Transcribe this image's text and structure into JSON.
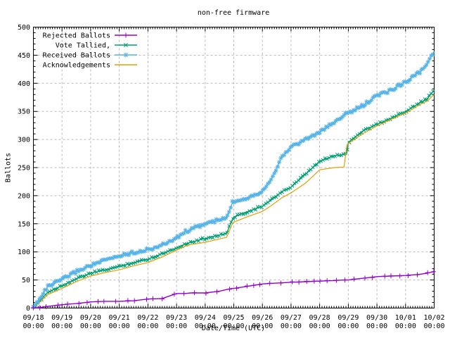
{
  "chart_data": {
    "type": "line",
    "title": "non-free firmware",
    "xlabel": "Date/Time (UTC)",
    "ylabel": "Ballots",
    "background": "#ffffff",
    "grid": true,
    "grid_color": "#b9b9b9",
    "axis_color": "#000000",
    "legend_position": "top-left-inside",
    "x_axis": {
      "tick_dates": [
        "09/18",
        "09/19",
        "09/20",
        "09/21",
        "09/22",
        "09/23",
        "09/24",
        "09/25",
        "09/26",
        "09/27",
        "09/28",
        "09/29",
        "09/30",
        "10/01",
        "10/02"
      ],
      "tick_time": "00:00",
      "range_days": [
        0,
        14
      ],
      "minor_ticks_per_day": 12
    },
    "y_axis": {
      "min": 0,
      "max": 500,
      "tick_step": 50,
      "minor_step": 10
    },
    "x_days": [
      0,
      0.25,
      0.5,
      1,
      1.5,
      2,
      2.5,
      3,
      3.5,
      4,
      4.5,
      5,
      5.3,
      5.5,
      6,
      6.5,
      6.75,
      6.95,
      7,
      7.5,
      8,
      8.3,
      8.7,
      9,
      9.5,
      10,
      10.5,
      10.85,
      10.95,
      11,
      11.5,
      12,
      12.5,
      13,
      13.5,
      13.75,
      14
    ],
    "series": [
      {
        "name": "Rejected Ballots",
        "color": "#9400D3",
        "marker": "plus",
        "values": [
          0,
          1,
          3,
          6,
          8,
          11,
          12,
          12,
          13,
          16,
          17,
          26,
          26,
          27,
          27,
          30,
          33,
          35,
          35,
          39,
          43,
          44,
          45,
          46,
          47,
          48,
          49,
          50,
          50,
          50,
          53,
          56,
          57,
          58,
          60,
          62,
          65
        ]
      },
      {
        "name": "Vote Tallied,",
        "color": "#009E73",
        "marker": "cross",
        "values": [
          0,
          15,
          28,
          40,
          52,
          62,
          68,
          74,
          81,
          87,
          97,
          107,
          114,
          117,
          124,
          130,
          133,
          158,
          162,
          172,
          181,
          192,
          208,
          215,
          238,
          261,
          271,
          273,
          276,
          295,
          315,
          327,
          338,
          350,
          365,
          372,
          388
        ]
      },
      {
        "name": "Received Ballots",
        "color": "#56B4E9",
        "marker": "asterisk",
        "values": [
          0,
          20,
          38,
          51,
          65,
          76,
          85,
          93,
          99,
          104,
          112,
          125,
          136,
          140,
          150,
          157,
          160,
          188,
          190,
          197,
          208,
          230,
          270,
          287,
          300,
          313,
          330,
          344,
          346,
          347,
          360,
          378,
          388,
          403,
          420,
          433,
          457
        ]
      },
      {
        "name": "Acknowledgements",
        "color": "#E69F00",
        "marker": "none",
        "values": [
          0,
          12,
          24,
          35,
          47,
          57,
          63,
          68,
          75,
          81,
          91,
          103,
          110,
          113,
          117,
          123,
          126,
          150,
          153,
          163,
          172,
          182,
          197,
          205,
          222,
          246,
          250,
          251,
          290,
          293,
          310,
          324,
          336,
          347,
          362,
          368,
          380
        ]
      }
    ]
  }
}
